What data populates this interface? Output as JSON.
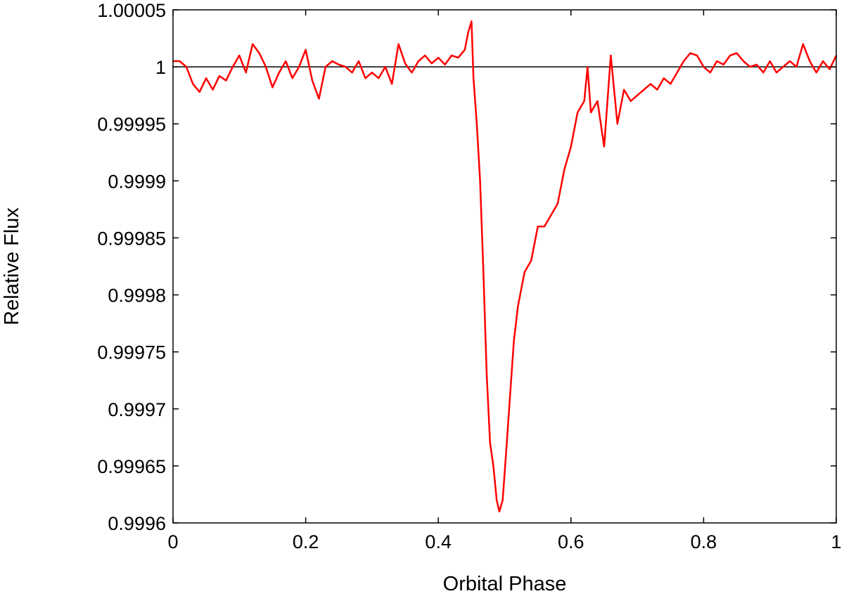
{
  "chart_data": {
    "type": "line",
    "title": "",
    "xlabel": "Orbital Phase",
    "ylabel": "Relative Flux",
    "xlim": [
      0,
      1
    ],
    "ylim": [
      0.9996,
      1.00005
    ],
    "x_ticks": [
      0,
      0.2,
      0.4,
      0.6,
      0.8,
      1
    ],
    "x_tick_labels": [
      "0",
      "0.2",
      "0.4",
      "0.6",
      "0.8",
      "1"
    ],
    "y_ticks": [
      0.9996,
      0.99965,
      0.9997,
      0.99975,
      0.9998,
      0.99985,
      0.9999,
      0.99995,
      1,
      1.00005
    ],
    "y_tick_labels": [
      "0.9996",
      "0.99965",
      "0.9997",
      "0.99975",
      "0.9998",
      "0.99985",
      "0.9999",
      "0.99995",
      "1",
      "1.00005"
    ],
    "grid": false,
    "legend": "none",
    "reference_line": {
      "y": 1,
      "color": "#000000"
    },
    "series": [
      {
        "color": "#ff0000",
        "points": [
          [
            0.0,
            1.000005
          ],
          [
            0.01,
            1.000005
          ],
          [
            0.02,
            1.0
          ],
          [
            0.03,
            0.999985
          ],
          [
            0.04,
            0.999978
          ],
          [
            0.05,
            0.99999
          ],
          [
            0.06,
            0.99998
          ],
          [
            0.07,
            0.999992
          ],
          [
            0.08,
            0.999988
          ],
          [
            0.09,
            1.0
          ],
          [
            0.1,
            1.00001
          ],
          [
            0.11,
            0.999995
          ],
          [
            0.12,
            1.00002
          ],
          [
            0.13,
            1.000012
          ],
          [
            0.14,
            1.0
          ],
          [
            0.15,
            0.999982
          ],
          [
            0.16,
            0.999995
          ],
          [
            0.17,
            1.000005
          ],
          [
            0.18,
            0.99999
          ],
          [
            0.19,
            1.0
          ],
          [
            0.2,
            1.000015
          ],
          [
            0.21,
            0.999988
          ],
          [
            0.22,
            0.999972
          ],
          [
            0.23,
            1.0
          ],
          [
            0.24,
            1.000005
          ],
          [
            0.25,
            1.000002
          ],
          [
            0.26,
            1.0
          ],
          [
            0.27,
            0.999995
          ],
          [
            0.28,
            1.000005
          ],
          [
            0.29,
            0.99999
          ],
          [
            0.3,
            0.999995
          ],
          [
            0.31,
            0.99999
          ],
          [
            0.32,
            1.0
          ],
          [
            0.33,
            0.999985
          ],
          [
            0.34,
            1.00002
          ],
          [
            0.35,
            1.000003
          ],
          [
            0.36,
            0.999995
          ],
          [
            0.37,
            1.000005
          ],
          [
            0.38,
            1.00001
          ],
          [
            0.39,
            1.000003
          ],
          [
            0.4,
            1.000008
          ],
          [
            0.41,
            1.000002
          ],
          [
            0.42,
            1.00001
          ],
          [
            0.43,
            1.000008
          ],
          [
            0.44,
            1.000015
          ],
          [
            0.445,
            1.00003
          ],
          [
            0.45,
            1.00004
          ],
          [
            0.453,
            0.99999
          ],
          [
            0.458,
            0.99995
          ],
          [
            0.463,
            0.9999
          ],
          [
            0.468,
            0.99982
          ],
          [
            0.473,
            0.99973
          ],
          [
            0.478,
            0.99967
          ],
          [
            0.483,
            0.99965
          ],
          [
            0.488,
            0.99962
          ],
          [
            0.492,
            0.99961
          ],
          [
            0.497,
            0.99962
          ],
          [
            0.502,
            0.99966
          ],
          [
            0.508,
            0.99971
          ],
          [
            0.514,
            0.99976
          ],
          [
            0.52,
            0.99979
          ],
          [
            0.53,
            0.99982
          ],
          [
            0.54,
            0.99983
          ],
          [
            0.55,
            0.99986
          ],
          [
            0.56,
            0.99986
          ],
          [
            0.57,
            0.99987
          ],
          [
            0.58,
            0.99988
          ],
          [
            0.59,
            0.99991
          ],
          [
            0.6,
            0.99993
          ],
          [
            0.61,
            0.99996
          ],
          [
            0.62,
            0.99997
          ],
          [
            0.625,
            1.0
          ],
          [
            0.63,
            0.99996
          ],
          [
            0.64,
            0.99997
          ],
          [
            0.65,
            0.99993
          ],
          [
            0.66,
            1.00001
          ],
          [
            0.67,
            0.99995
          ],
          [
            0.68,
            0.99998
          ],
          [
            0.69,
            0.99997
          ],
          [
            0.7,
            0.999975
          ],
          [
            0.71,
            0.99998
          ],
          [
            0.72,
            0.999985
          ],
          [
            0.73,
            0.99998
          ],
          [
            0.74,
            0.99999
          ],
          [
            0.75,
            0.999985
          ],
          [
            0.76,
            0.999995
          ],
          [
            0.77,
            1.000005
          ],
          [
            0.78,
            1.000012
          ],
          [
            0.79,
            1.00001
          ],
          [
            0.8,
            1.0
          ],
          [
            0.81,
            0.999995
          ],
          [
            0.82,
            1.000005
          ],
          [
            0.83,
            1.000002
          ],
          [
            0.84,
            1.00001
          ],
          [
            0.85,
            1.000012
          ],
          [
            0.86,
            1.000005
          ],
          [
            0.87,
            1.0
          ],
          [
            0.88,
            1.000002
          ],
          [
            0.89,
            0.999995
          ],
          [
            0.9,
            1.000005
          ],
          [
            0.91,
            0.999995
          ],
          [
            0.92,
            1.0
          ],
          [
            0.93,
            1.000005
          ],
          [
            0.94,
            1.0
          ],
          [
            0.95,
            1.00002
          ],
          [
            0.96,
            1.000005
          ],
          [
            0.97,
            0.999995
          ],
          [
            0.98,
            1.000005
          ],
          [
            0.99,
            0.999998
          ],
          [
            1.0,
            1.00001
          ]
        ]
      }
    ]
  }
}
